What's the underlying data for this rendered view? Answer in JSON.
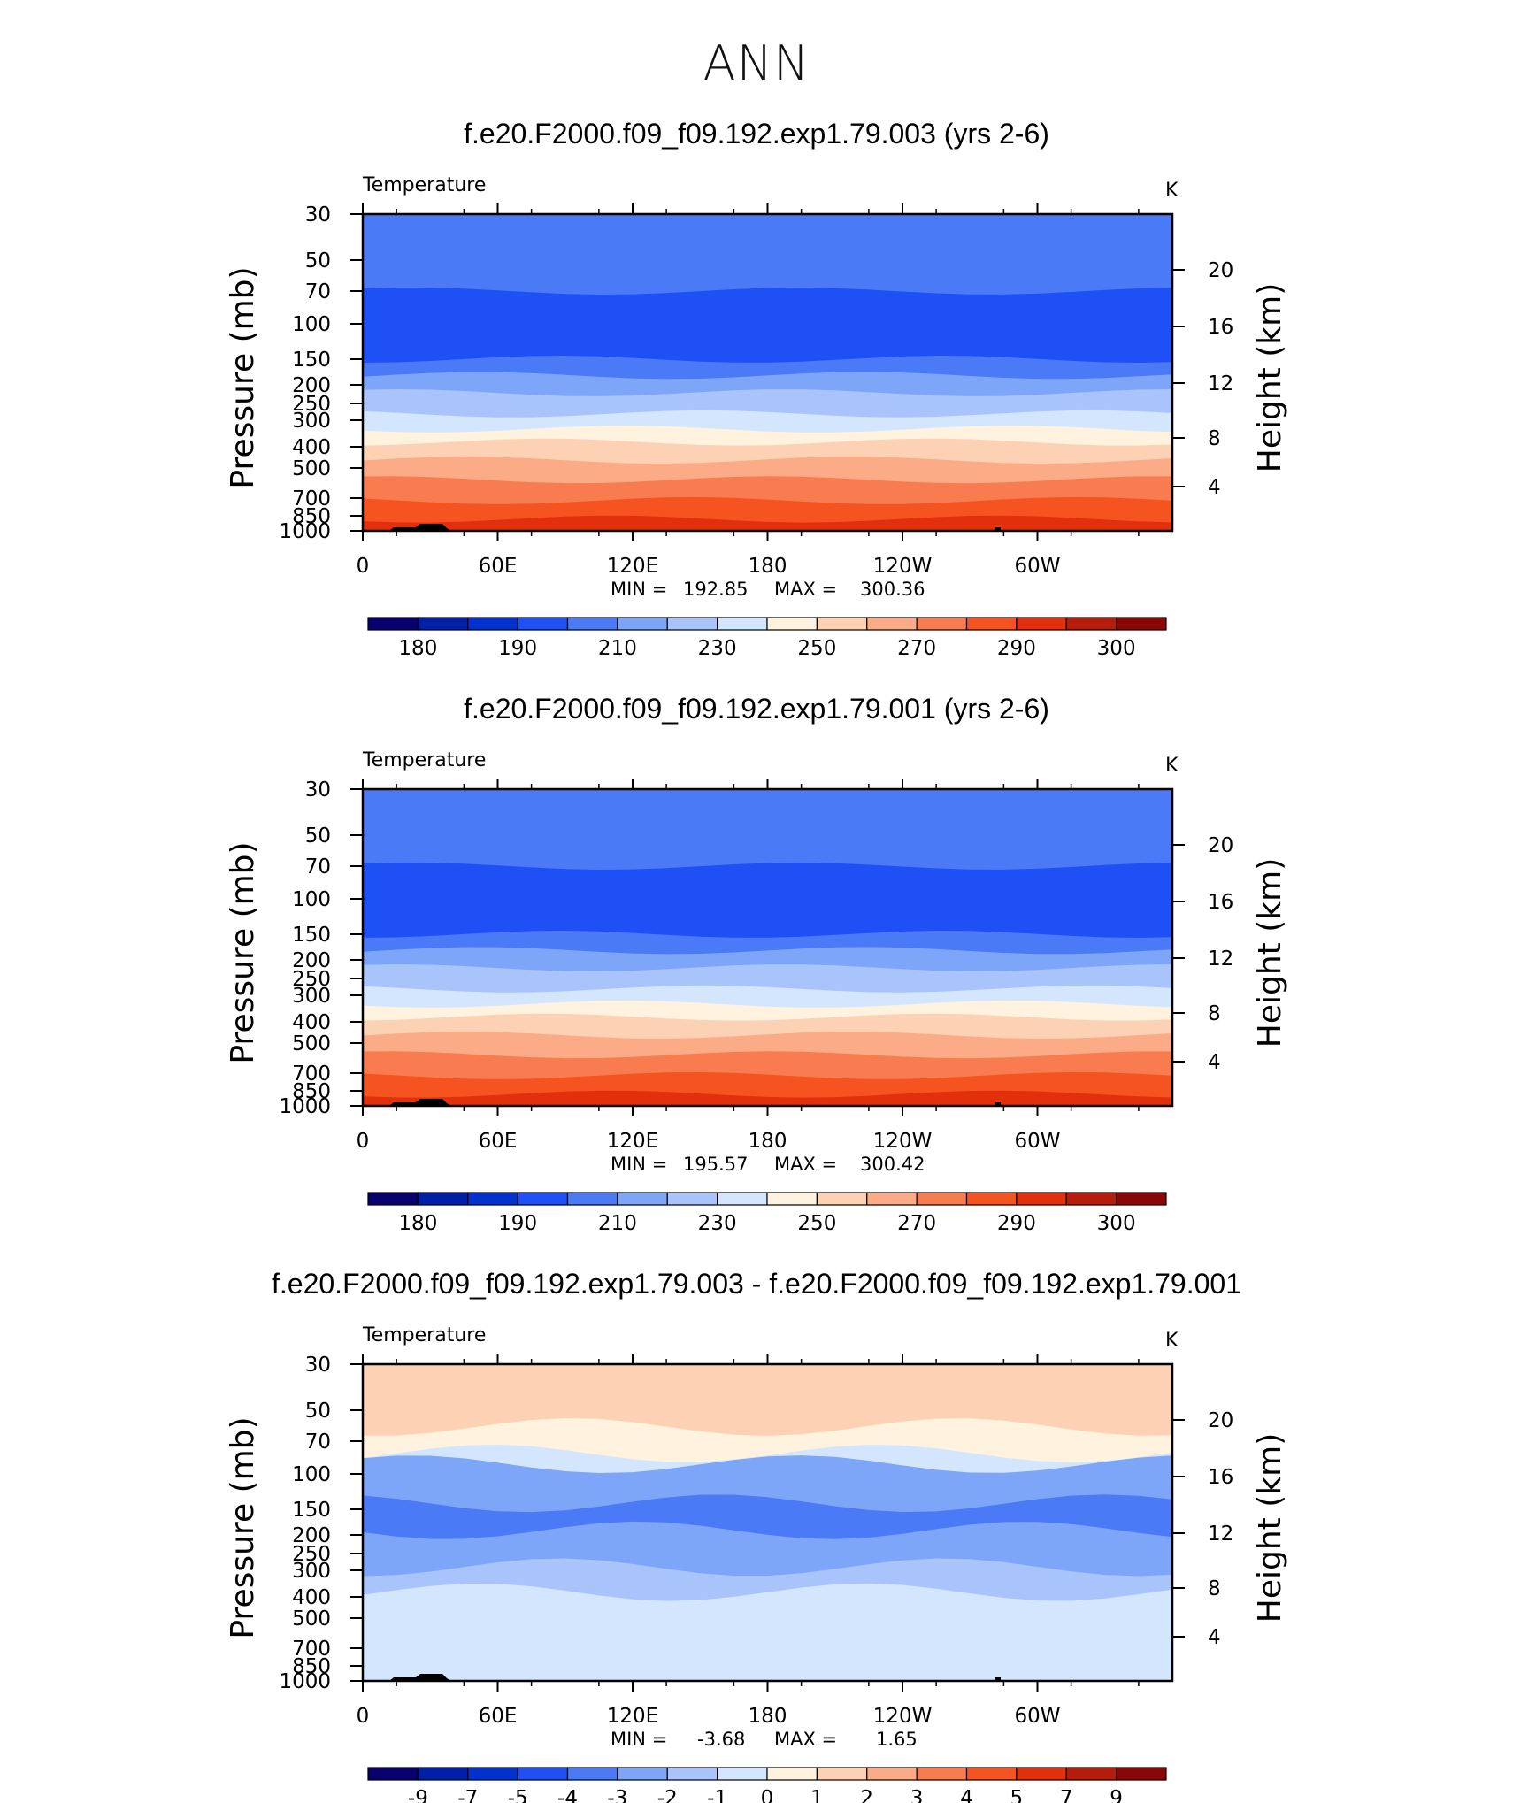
{
  "main_title": "ANN",
  "colors": {
    "temperature_palette": [
      "#08006e",
      "#0020a8",
      "#0032d0",
      "#1e50f5",
      "#4a7af5",
      "#7ea6f8",
      "#a8c4fb",
      "#d4e6fe",
      "#fff2df",
      "#fdd2b4",
      "#fbab86",
      "#f97c50",
      "#f55420",
      "#e2300d",
      "#b51d0a",
      "#8b0606"
    ],
    "difference_palette": [
      "#08006e",
      "#0020a8",
      "#0032d0",
      "#1e50f5",
      "#4a7af5",
      "#7ea6f8",
      "#a8c4fb",
      "#d4e6fe",
      "#fff2df",
      "#fdd2b4",
      "#fbab86",
      "#f97c50",
      "#f55420",
      "#e2300d",
      "#b51d0a",
      "#8b0606"
    ],
    "topography": "#000000"
  },
  "chart_data": [
    {
      "type": "heatmap",
      "title": "f.e20.F2000.f09_f09.192.exp1.79.003 (yrs 2-6)",
      "field_label": "Temperature",
      "units": "K",
      "ylabel": "Pressure (mb)",
      "ylabel_right": "Height (km)",
      "x_ticks": [
        "0",
        "60E",
        "120E",
        "180",
        "120W",
        "60W"
      ],
      "xlim": [
        0,
        360
      ],
      "y_ticks": [
        "30",
        "50",
        "70",
        "100",
        "150",
        "200",
        "250",
        "300",
        "400",
        "500",
        "700",
        "850",
        "1000"
      ],
      "ylim": [
        1000,
        30
      ],
      "height_ticks": [
        "20",
        "16",
        "12",
        "8",
        "4"
      ],
      "min_label": "MIN =",
      "min_value": "192.85",
      "max_label": "MAX =",
      "max_value": "300.36",
      "colorbar_labels": [
        "180",
        "190",
        "210",
        "230",
        "250",
        "270",
        "290",
        "300"
      ],
      "levels_by_pressure": [
        {
          "pressure": 30,
          "band": 4
        },
        {
          "pressure": 35,
          "band": 4
        },
        {
          "pressure": 50,
          "band": 4
        },
        {
          "pressure": 70,
          "band": 3
        },
        {
          "pressure": 100,
          "band": 3
        },
        {
          "pressure": 130,
          "band": 3
        },
        {
          "pressure": 150,
          "band": 4
        },
        {
          "pressure": 180,
          "band": 5
        },
        {
          "pressure": 220,
          "band": 6
        },
        {
          "pressure": 280,
          "band": 7
        },
        {
          "pressure": 330,
          "band": 8
        },
        {
          "pressure": 380,
          "band": 9
        },
        {
          "pressure": 460,
          "band": 10
        },
        {
          "pressure": 570,
          "band": 11
        },
        {
          "pressure": 720,
          "band": 12
        },
        {
          "pressure": 880,
          "band": 13
        }
      ]
    },
    {
      "type": "heatmap",
      "title": "f.e20.F2000.f09_f09.192.exp1.79.001 (yrs 2-6)",
      "field_label": "Temperature",
      "units": "K",
      "ylabel": "Pressure (mb)",
      "ylabel_right": "Height (km)",
      "x_ticks": [
        "0",
        "60E",
        "120E",
        "180",
        "120W",
        "60W"
      ],
      "xlim": [
        0,
        360
      ],
      "y_ticks": [
        "30",
        "50",
        "70",
        "100",
        "150",
        "200",
        "250",
        "300",
        "400",
        "500",
        "700",
        "850",
        "1000"
      ],
      "ylim": [
        1000,
        30
      ],
      "height_ticks": [
        "20",
        "16",
        "12",
        "8",
        "4"
      ],
      "min_label": "MIN =",
      "min_value": "195.57",
      "max_label": "MAX =",
      "max_value": "300.42",
      "colorbar_labels": [
        "180",
        "190",
        "210",
        "230",
        "250",
        "270",
        "290",
        "300"
      ],
      "levels_by_pressure": [
        {
          "pressure": 30,
          "band": 4
        },
        {
          "pressure": 35,
          "band": 4
        },
        {
          "pressure": 50,
          "band": 4
        },
        {
          "pressure": 70,
          "band": 3
        },
        {
          "pressure": 100,
          "band": 3
        },
        {
          "pressure": 130,
          "band": 3
        },
        {
          "pressure": 150,
          "band": 4
        },
        {
          "pressure": 180,
          "band": 5
        },
        {
          "pressure": 220,
          "band": 6
        },
        {
          "pressure": 280,
          "band": 7
        },
        {
          "pressure": 330,
          "band": 8
        },
        {
          "pressure": 380,
          "band": 9
        },
        {
          "pressure": 460,
          "band": 10
        },
        {
          "pressure": 570,
          "band": 11
        },
        {
          "pressure": 720,
          "band": 12
        },
        {
          "pressure": 880,
          "band": 13
        }
      ]
    },
    {
      "type": "heatmap",
      "title": "f.e20.F2000.f09_f09.192.exp1.79.003 - f.e20.F2000.f09_f09.192.exp1.79.001",
      "field_label": "Temperature",
      "units": "K",
      "ylabel": "Pressure (mb)",
      "ylabel_right": "Height (km)",
      "x_ticks": [
        "0",
        "60E",
        "120E",
        "180",
        "120W",
        "60W"
      ],
      "xlim": [
        0,
        360
      ],
      "y_ticks": [
        "30",
        "50",
        "70",
        "100",
        "150",
        "200",
        "250",
        "300",
        "400",
        "500",
        "700",
        "850",
        "1000"
      ],
      "ylim": [
        1000,
        30
      ],
      "height_ticks": [
        "20",
        "16",
        "12",
        "8",
        "4"
      ],
      "min_label": "MIN =",
      "min_value": "-3.68",
      "max_label": "MAX =",
      "max_value": "1.65",
      "colorbar_labels": [
        "-9",
        "-7",
        "-5",
        "-4",
        "-3",
        "-2",
        "-1",
        "0",
        "1",
        "2",
        "3",
        "4",
        "5",
        "7",
        "9"
      ],
      "levels_by_pressure": [
        {
          "pressure": 30,
          "band": 9
        },
        {
          "pressure": 60,
          "band": 8
        },
        {
          "pressure": 80,
          "band": 7
        },
        {
          "pressure": 90,
          "band": 5
        },
        {
          "pressure": 140,
          "band": 4
        },
        {
          "pressure": 190,
          "band": 5
        },
        {
          "pressure": 290,
          "band": 6
        },
        {
          "pressure": 380,
          "band": 7
        }
      ]
    }
  ]
}
